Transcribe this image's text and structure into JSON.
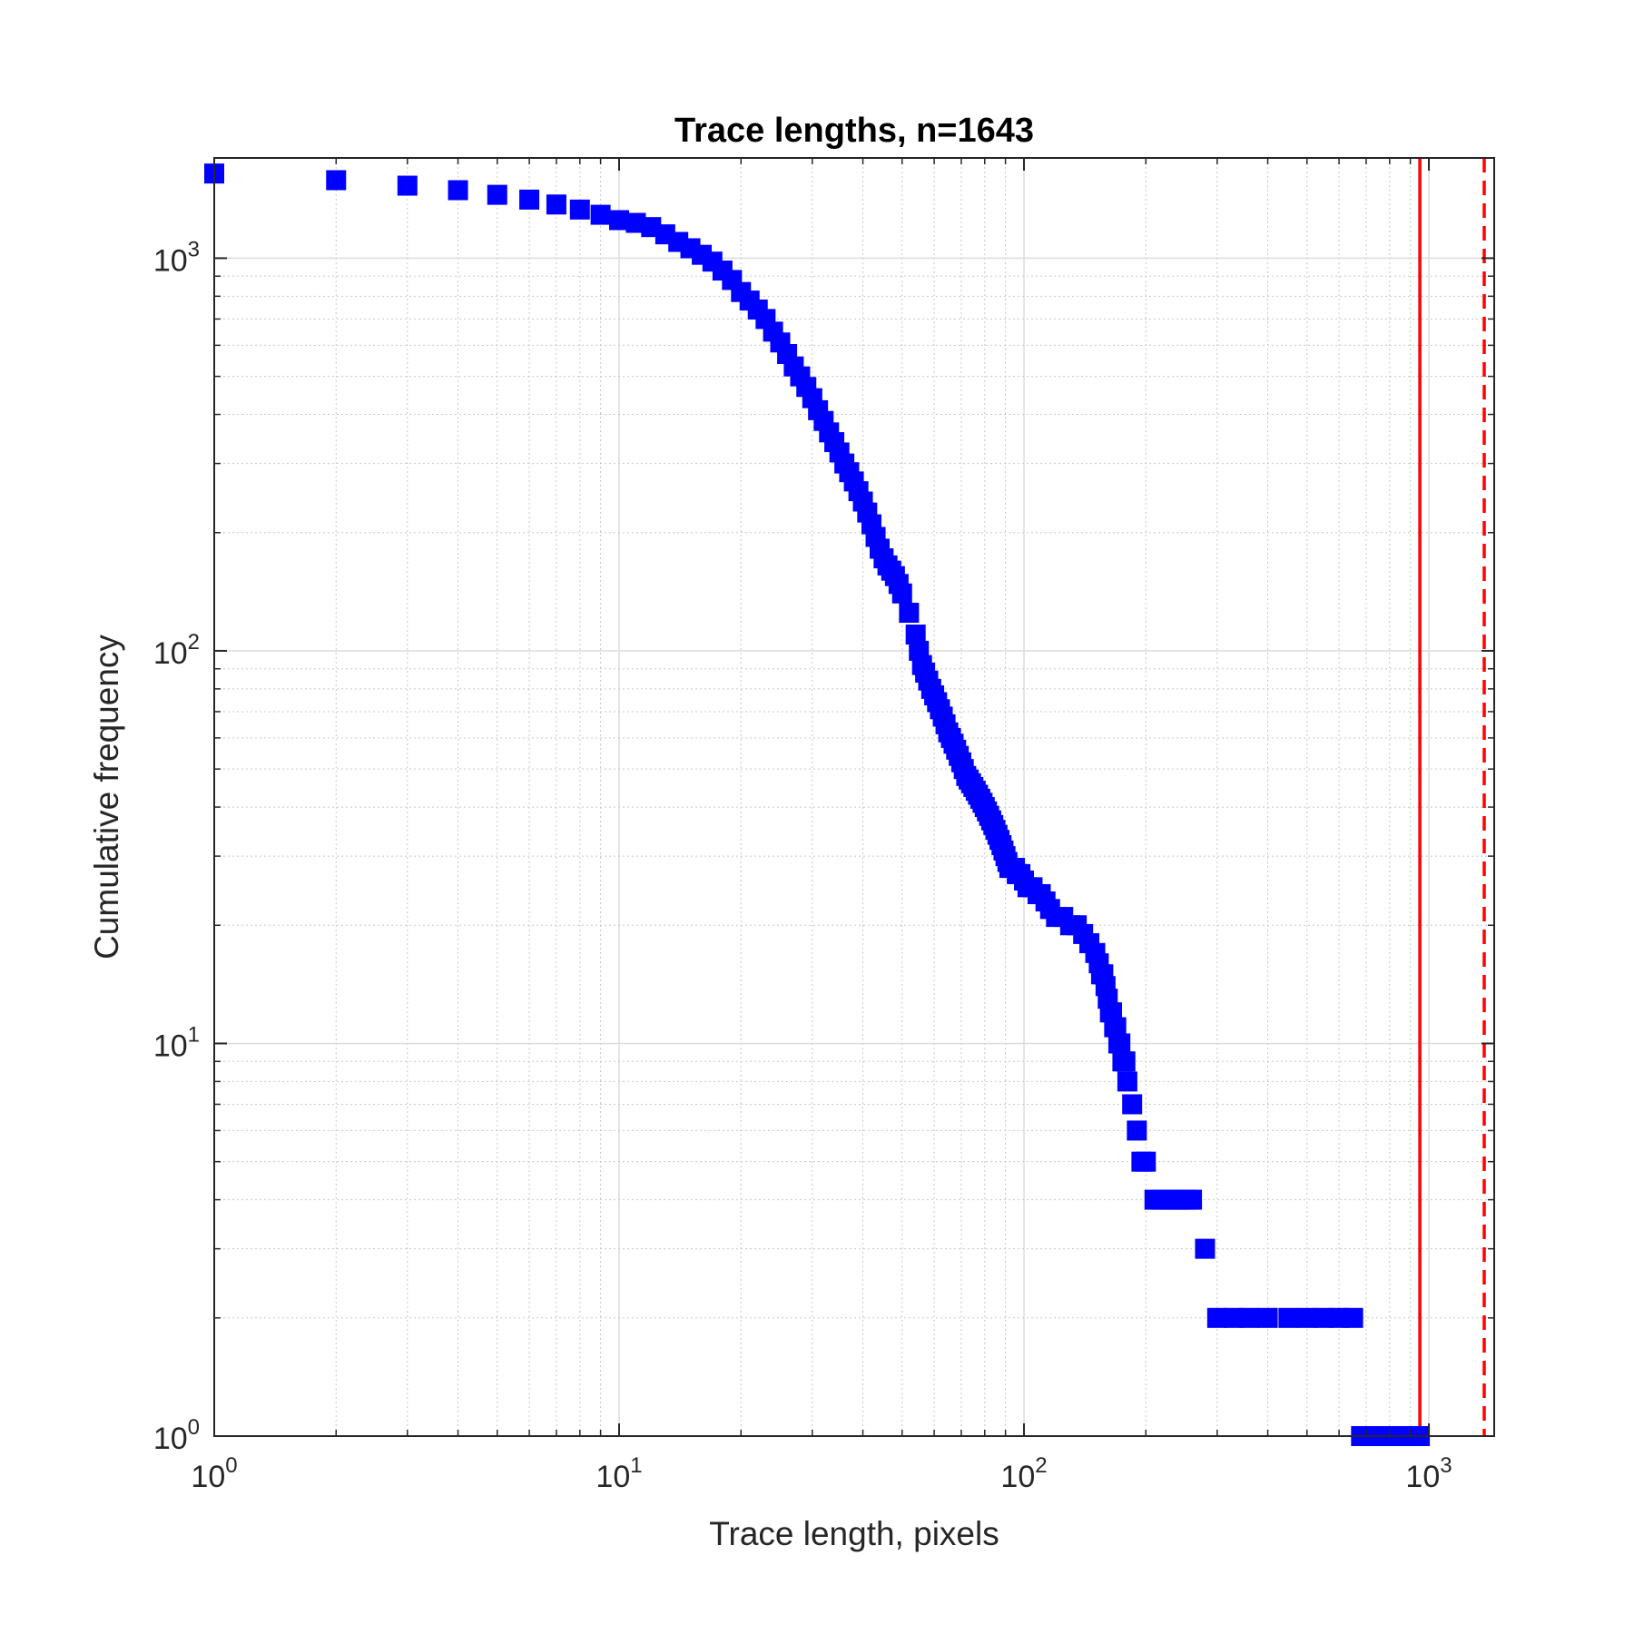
{
  "chart_data": {
    "type": "scatter",
    "title": "Trace lengths, n=1643",
    "xlabel": "Trace length, pixels",
    "ylabel": "Cumulative frequency",
    "xscale": "log",
    "yscale": "log",
    "xlim": [
      1,
      1450
    ],
    "ylim": [
      1,
      1800
    ],
    "grid": true,
    "minor_grid": true,
    "x_ticks": [
      {
        "value": 1,
        "base": "10",
        "exp": "0"
      },
      {
        "value": 10,
        "base": "10",
        "exp": "1"
      },
      {
        "value": 100,
        "base": "10",
        "exp": "2"
      },
      {
        "value": 1000,
        "base": "10",
        "exp": "3"
      }
    ],
    "y_ticks": [
      {
        "value": 1,
        "base": "10",
        "exp": "0"
      },
      {
        "value": 10,
        "base": "10",
        "exp": "1"
      },
      {
        "value": 100,
        "base": "10",
        "exp": "2"
      },
      {
        "value": 1000,
        "base": "10",
        "exp": "3"
      }
    ],
    "marker": {
      "shape": "square",
      "color": "#0000ff"
    },
    "series": [
      {
        "x": [
          1,
          2,
          3,
          4,
          5,
          6,
          7,
          8,
          9,
          10,
          11,
          12,
          13,
          14,
          15,
          16,
          17,
          18,
          19,
          20,
          21,
          22,
          23,
          24,
          25,
          26,
          27,
          28,
          29,
          30,
          31,
          32,
          33,
          34,
          35,
          36,
          37,
          38,
          39,
          40,
          41,
          42,
          43,
          44,
          45,
          46,
          47,
          48,
          49,
          50,
          52,
          54,
          55,
          56,
          57,
          58,
          59,
          60,
          61,
          62,
          63,
          64,
          65,
          66,
          67,
          68,
          69,
          70,
          71,
          72,
          73,
          74,
          75,
          76,
          77,
          78,
          79,
          80,
          81,
          82,
          83,
          84,
          85,
          86,
          87,
          88,
          89,
          90,
          91,
          92,
          93,
          94,
          95,
          96,
          97,
          98,
          100,
          102,
          105,
          108,
          110,
          113,
          116,
          120,
          125,
          130,
          135,
          140,
          145,
          150,
          153,
          155,
          157,
          159,
          161,
          163,
          165,
          167,
          169,
          171,
          173,
          175,
          178,
          180,
          185,
          190,
          195,
          200,
          210,
          220,
          230,
          240,
          250,
          260,
          280,
          300,
          330,
          360,
          400,
          450,
          500,
          550,
          600,
          650,
          680,
          700,
          750,
          800,
          850,
          900,
          950
        ],
        "y": [
          1643,
          1580,
          1530,
          1490,
          1450,
          1410,
          1370,
          1330,
          1290,
          1250,
          1230,
          1200,
          1150,
          1100,
          1060,
          1020,
          980,
          930,
          880,
          820,
          780,
          740,
          700,
          650,
          610,
          570,
          530,
          500,
          470,
          440,
          410,
          385,
          360,
          340,
          320,
          300,
          285,
          270,
          255,
          240,
          225,
          210,
          195,
          182,
          172,
          165,
          160,
          155,
          148,
          140,
          125,
          110,
          100,
          92,
          88,
          84,
          80,
          77,
          74,
          71,
          68,
          65,
          62,
          60,
          58,
          56,
          54,
          52,
          50,
          48,
          47,
          46,
          45,
          44,
          43,
          42,
          41,
          40,
          39,
          38,
          37,
          36,
          35,
          34,
          33,
          32,
          31,
          30,
          29,
          28,
          28,
          28,
          28,
          27,
          27,
          27,
          26,
          25,
          25,
          24,
          24,
          23,
          22,
          21,
          21,
          20,
          20,
          19,
          18,
          17,
          16,
          15,
          15,
          14,
          13,
          12,
          12,
          11,
          11,
          10,
          10,
          9,
          9,
          8,
          7,
          6,
          5,
          5,
          4,
          4,
          4,
          4,
          4,
          4,
          3,
          2,
          2,
          2,
          2,
          2,
          2,
          2,
          2,
          2,
          1,
          1,
          1,
          1,
          1,
          1,
          1
        ]
      }
    ],
    "reference_lines": [
      {
        "x": 950,
        "orientation": "vertical",
        "color": "#ff0000",
        "style": "solid"
      },
      {
        "x": 1370,
        "orientation": "vertical",
        "color": "#ff0000",
        "style": "dashed"
      }
    ]
  }
}
